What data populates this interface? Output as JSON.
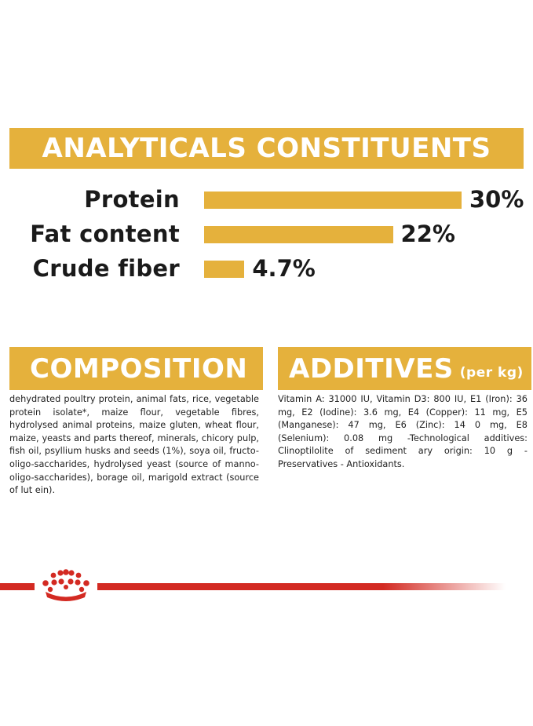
{
  "analytics": {
    "title": "ANALYTICALS CONSTITUENTS",
    "items": [
      {
        "label": "Protein",
        "value_text": "30%",
        "value": 30
      },
      {
        "label": "Fat content",
        "value_text": "22%",
        "value": 22
      },
      {
        "label": "Crude fiber",
        "value_text": "4.7%",
        "value": 4.7
      }
    ]
  },
  "composition": {
    "title": "COMPOSITION",
    "text": "dehydrated poultry protein, animal fats, rice, vegetable protein isolate*, maize flour, vegetable fibres, hydrolysed animal proteins, maize gluten, wheat flour, maize, yeasts and parts thereof, minerals, chicory pulp, fish oil, psyllium husks and seeds (1%), soya oil, fructo-oligo-saccharides, hydrolysed yeast (source of manno-oligo-saccharides), borage oil, marigold extract (source of lut ein)."
  },
  "additives": {
    "title": "ADDITIVES",
    "subtitle": "(per kg)",
    "text": "Vitamin A: 31000 IU, Vitamin D3: 800 IU, E1 (Iron): 36 mg, E2 (Iodine): 3.6 mg, E4 (Copper): 11 mg, E5 (Manganese): 47 mg, E6 (Zinc): 14 0 mg, E8 (Selenium): 0.08 mg -Technological additives: Clinoptilolite of sediment ary origin: 10 g - Preservatives - Antioxidants."
  },
  "colors": {
    "accent": "#e5b13c",
    "brand_red": "#d32a22"
  },
  "footer": {
    "logo_icon": "royal-canin-crown-icon"
  }
}
